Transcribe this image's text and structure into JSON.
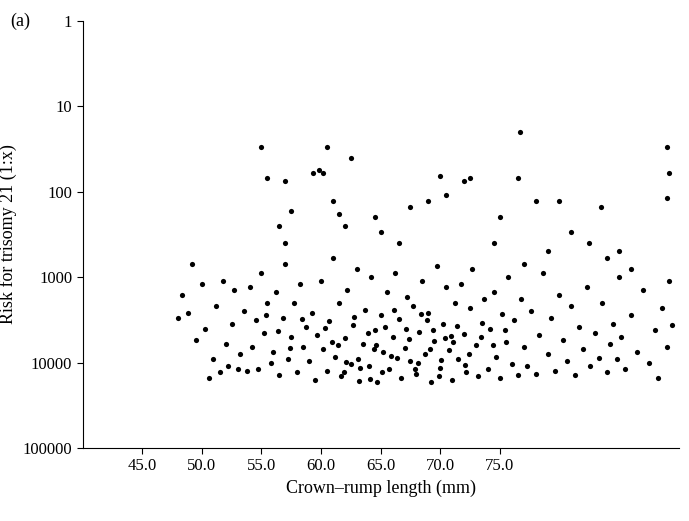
{
  "chart_data": {
    "type": "scatter",
    "title": "(a)",
    "x_label": "Crown–rump length (mm)",
    "y_label": "Risk for trisomy 21 (1:x)",
    "log": "y",
    "grid": false,
    "color": "#000000",
    "marker": "o",
    "xlim": [
      40,
      90
    ],
    "xticks": [
      {
        "value": 45,
        "label": "45.0"
      },
      {
        "value": 50,
        "label": "50.0"
      },
      {
        "value": 55,
        "label": "55.0"
      },
      {
        "value": 60,
        "label": "60.0"
      },
      {
        "value": 65,
        "label": "65.0"
      },
      {
        "value": 70,
        "label": "70.0"
      },
      {
        "value": 75,
        "label": "75.0"
      }
    ],
    "ylim": [
      100000,
      1
    ],
    "yticks": [
      1,
      10,
      100,
      1000,
      10000,
      100000
    ],
    "x": [
      48.0,
      48.3,
      48.8,
      49.2,
      49.5,
      50.0,
      50.3,
      50.6,
      50.9,
      51.2,
      51.5,
      51.8,
      52.0,
      52.2,
      52.5,
      52.7,
      53.0,
      53.2,
      53.5,
      53.8,
      54.0,
      54.2,
      54.5,
      54.7,
      55.0,
      55.2,
      55.5,
      55.8,
      56.0,
      56.2,
      56.5,
      56.8,
      57.0,
      57.2,
      57.5,
      57.7,
      58.0,
      58.2,
      58.5,
      58.7,
      59.0,
      59.2,
      59.5,
      59.7,
      60.0,
      60.2,
      60.5,
      60.7,
      61.0,
      61.2,
      61.5,
      61.7,
      62.0,
      62.2,
      62.5,
      62.7,
      63.0,
      63.2,
      63.5,
      63.7,
      64.0,
      64.2,
      64.5,
      64.7,
      65.0,
      65.2,
      65.5,
      65.7,
      66.0,
      66.2,
      66.5,
      66.7,
      67.0,
      67.2,
      67.5,
      67.7,
      68.0,
      68.2,
      68.5,
      68.7,
      69.0,
      69.2,
      69.5,
      69.7,
      70.0,
      70.2,
      70.5,
      70.7,
      71.0,
      71.2,
      71.5,
      71.7,
      72.0,
      72.2,
      72.5,
      72.7,
      73.0,
      73.2,
      73.5,
      73.7,
      74.0,
      74.2,
      74.5,
      74.7,
      75.0,
      75.2,
      75.5,
      75.7,
      76.0,
      76.2,
      76.5,
      76.8,
      77.0,
      77.3,
      77.6,
      78.0,
      78.3,
      78.6,
      79.0,
      79.3,
      79.6,
      80.0,
      80.3,
      80.6,
      81.0,
      81.3,
      81.6,
      82.0,
      82.3,
      82.6,
      83.0,
      83.3,
      83.6,
      84.0,
      84.2,
      84.5,
      84.8,
      85.0,
      85.2,
      85.5,
      86.0,
      86.5,
      87.0,
      87.5,
      88.0,
      88.3,
      88.6,
      89.0,
      89.2,
      89.4,
      60.3,
      61.4,
      62.8,
      63.9,
      64.4,
      65.4,
      66.4,
      67.4,
      68.4,
      69.4,
      70.4,
      71.4,
      72.4,
      73.4,
      74.4,
      75.4,
      58.4,
      57.4,
      56.4,
      55.4,
      62.1,
      63.3,
      64.6,
      65.9,
      67.1,
      68.1,
      69.1,
      70.1,
      71.1,
      72.1,
      65.1,
      66.1,
      67.9,
      68.9,
      69.9,
      70.9,
      64.1,
      63.1,
      61.9,
      60.9,
      55.0,
      55.5,
      57.0,
      60.5,
      62.5,
      59.3,
      59.8,
      60.2,
      61.0,
      56.5,
      57.0,
      57.5,
      61.5,
      62.0,
      64.5,
      65.0,
      66.5,
      67.5,
      69.0,
      70.0,
      70.5,
      72.0,
      72.5,
      76.7,
      74.5,
      75.0,
      76.5,
      78.0,
      79.0,
      80.0,
      81.0,
      82.5,
      83.5,
      84.0,
      89.0,
      89.0,
      89.2,
      86.0,
      85.0,
      77.0
    ],
    "values": [
      3000,
      1600,
      2600,
      700,
      5500,
      1200,
      4000,
      15000,
      9000,
      2200,
      13000,
      1100,
      6000,
      11000,
      3500,
      1400,
      12000,
      8000,
      2500,
      12500,
      1300,
      6500,
      3200,
      12000,
      900,
      4500,
      2000,
      10000,
      7500,
      1500,
      14000,
      3000,
      700,
      9000,
      5000,
      2000,
      13000,
      1200,
      6500,
      3800,
      9500,
      2600,
      16000,
      4800,
      1100,
      7000,
      12500,
      3300,
      600,
      8500,
      2000,
      14500,
      5200,
      1400,
      10500,
      3600,
      800,
      16500,
      6000,
      2400,
      11000,
      1000,
      4200,
      17000,
      2800,
      7600,
      1500,
      12000,
      5000,
      900,
      3100,
      15000,
      6800,
      1700,
      9500,
      2200,
      13500,
      4400,
      1100,
      8000,
      2600,
      17000,
      5600,
      750,
      11500,
      3500,
      1300,
      7200,
      16000,
      2000,
      9000,
      1200,
      4600,
      13000,
      2300,
      800,
      6300,
      14500,
      3400,
      1800,
      12000,
      4000,
      1500,
      8500,
      15000,
      2700,
      5800,
      1000,
      10500,
      3200,
      14000,
      1800,
      6600,
      11000,
      2500,
      13500,
      4800,
      900,
      8000,
      3000,
      12500,
      1600,
      5500,
      9500,
      2200,
      14000,
      3800,
      7000,
      1300,
      11000,
      4500,
      8800,
      2000,
      13000,
      6000,
      3500,
      9000,
      1000,
      5000,
      12000,
      2800,
      7500,
      1400,
      10000,
      4200,
      15000,
      2300,
      6500,
      1100,
      3600,
      3900,
      6200,
      2900,
      4500,
      7000,
      3800,
      8800,
      5300,
      2700,
      4200,
      5100,
      3700,
      7900,
      5000,
      6200,
      4100,
      3100,
      6800,
      4300,
      2800,
      9800,
      11500,
      6300,
      8300,
      4000,
      10200,
      6900,
      9200,
      5700,
      10800,
      13000,
      2400,
      11800,
      3200,
      14200,
      4900,
      15500,
      9100,
      12800,
      5800,
      30,
      70,
      75,
      30,
      40,
      60,
      55,
      60,
      130,
      250,
      400,
      170,
      180,
      250,
      200,
      300,
      400,
      150,
      130,
      65,
      110,
      75,
      70,
      20,
      400,
      200,
      70,
      130,
      500,
      130,
      300,
      400,
      150,
      600,
      30,
      120,
      60,
      800,
      500,
      700
    ]
  }
}
